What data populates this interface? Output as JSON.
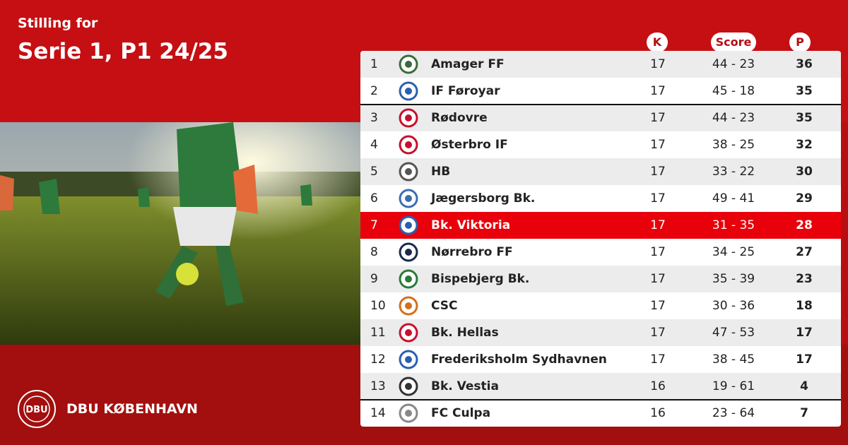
{
  "header": {
    "subtitle": "Stilling for",
    "title": "Serie 1, P1 24/25"
  },
  "table": {
    "columns": [
      "K",
      "Score",
      "P"
    ],
    "rows": [
      {
        "rank": "1",
        "team": "Amager FF",
        "played": "17",
        "score": "44 - 23",
        "points": "36"
      },
      {
        "rank": "2",
        "team": "IF Føroyar",
        "played": "17",
        "score": "45 - 18",
        "points": "35"
      },
      {
        "rank": "3",
        "team": "Rødovre",
        "played": "17",
        "score": "44 - 23",
        "points": "35"
      },
      {
        "rank": "4",
        "team": "Østerbro IF",
        "played": "17",
        "score": "38 - 25",
        "points": "32"
      },
      {
        "rank": "5",
        "team": "HB",
        "played": "17",
        "score": "33 - 22",
        "points": "30"
      },
      {
        "rank": "6",
        "team": "Jægersborg Bk.",
        "played": "17",
        "score": "49 - 41",
        "points": "29"
      },
      {
        "rank": "7",
        "team": "Bk. Viktoria",
        "played": "17",
        "score": "31 - 35",
        "points": "28",
        "highlight": true
      },
      {
        "rank": "8",
        "team": "Nørrebro FF",
        "played": "17",
        "score": "34 - 25",
        "points": "27"
      },
      {
        "rank": "9",
        "team": "Bispebjerg Bk.",
        "played": "17",
        "score": "35 - 39",
        "points": "23"
      },
      {
        "rank": "10",
        "team": "CSC",
        "played": "17",
        "score": "30 - 36",
        "points": "18"
      },
      {
        "rank": "11",
        "team": "Bk. Hellas",
        "played": "17",
        "score": "47 - 53",
        "points": "17"
      },
      {
        "rank": "12",
        "team": "Frederiksholm Sydhavnen",
        "played": "17",
        "score": "38 - 45",
        "points": "17"
      },
      {
        "rank": "13",
        "team": "Bk. Vestia",
        "played": "16",
        "score": "19 - 61",
        "points": "4"
      },
      {
        "rank": "14",
        "team": "FC Culpa",
        "played": "16",
        "score": "23 - 64",
        "points": "7"
      }
    ]
  },
  "footer": {
    "logo": "DBU",
    "brand": "DBU KØBENHAVN"
  }
}
